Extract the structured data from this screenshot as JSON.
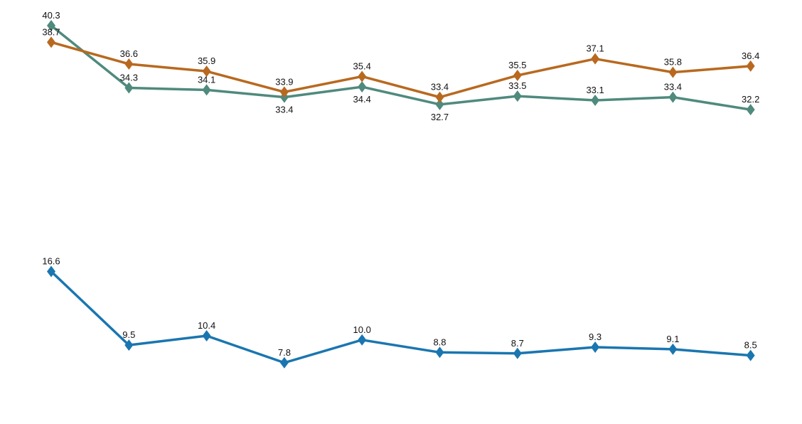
{
  "chart_data": {
    "type": "line",
    "title": "",
    "xlabel": "",
    "ylabel": "",
    "grid": false,
    "legend": "none",
    "marker": "diamond",
    "series": [
      {
        "color": "#b8691f",
        "values": [
          38.7,
          36.6,
          35.9,
          33.9,
          35.4,
          33.4,
          35.5,
          37.1,
          35.8,
          36.4
        ]
      },
      {
        "color": "#4f8a7d",
        "values": [
          40.3,
          34.3,
          34.1,
          33.4,
          34.4,
          32.7,
          33.5,
          33.1,
          33.4,
          32.2
        ]
      },
      {
        "color": "#1a76b0",
        "values": [
          16.6,
          9.5,
          10.4,
          7.8,
          10.0,
          8.8,
          8.7,
          9.3,
          9.1,
          8.5
        ]
      }
    ]
  }
}
